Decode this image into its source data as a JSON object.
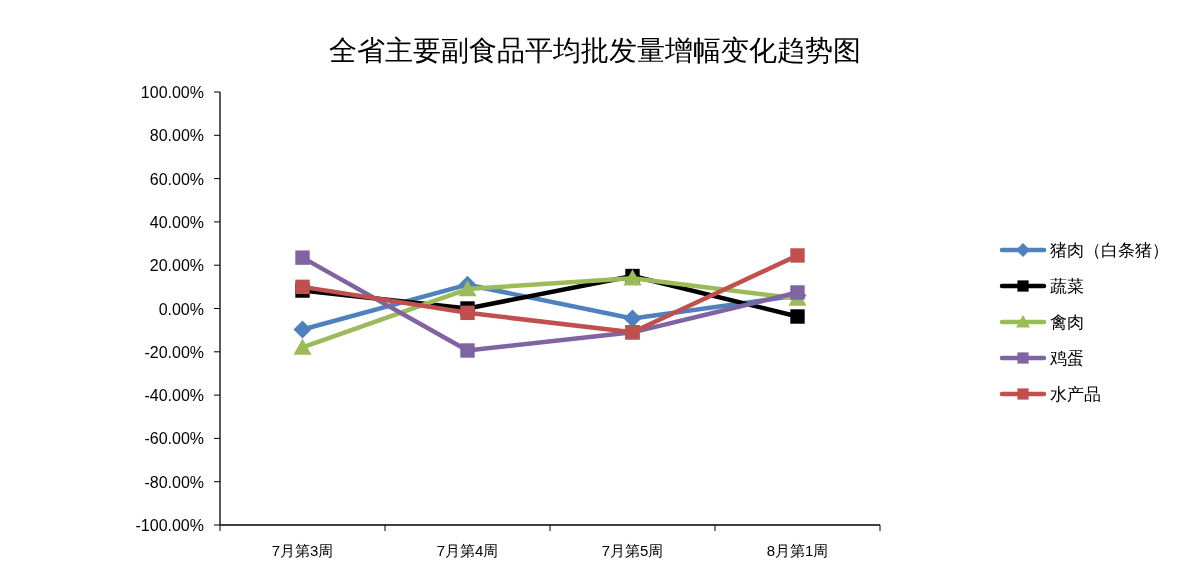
{
  "chart_data": {
    "type": "line",
    "title": "全省主要副食品平均批发量增幅变化趋势图",
    "categories": [
      "7月第3周",
      "7月第4周",
      "7月第5周",
      "8月第1周"
    ],
    "series": [
      {
        "name": "猪肉（白条猪）",
        "color": "#4f81bd",
        "marker": "diamond",
        "values": [
          -9.7,
          11,
          -4.6,
          6
        ]
      },
      {
        "name": "蔬菜",
        "color": "#000000",
        "marker": "square",
        "values": [
          8.3,
          0,
          15,
          -3.7
        ]
      },
      {
        "name": "禽肉",
        "color": "#9bbb59",
        "marker": "triangle",
        "values": [
          -18,
          9,
          14,
          4.6
        ]
      },
      {
        "name": "鸡蛋",
        "color": "#8064a2",
        "marker": "square",
        "values": [
          23.5,
          -19.4,
          -11,
          7.4
        ]
      },
      {
        "name": "水产品",
        "color": "#c0504d",
        "marker": "square",
        "values": [
          10,
          -2,
          -11,
          24.5
        ]
      }
    ],
    "ylim": [
      -100,
      100
    ],
    "yticks": [
      {
        "value": -100,
        "label": "-100.00%"
      },
      {
        "value": -80,
        "label": "-80.00%"
      },
      {
        "value": -60,
        "label": "-60.00%"
      },
      {
        "value": -40,
        "label": "-40.00%"
      },
      {
        "value": -20,
        "label": "-20.00%"
      },
      {
        "value": 0,
        "label": "0.00%"
      },
      {
        "value": 20,
        "label": "20.00%"
      },
      {
        "value": 40,
        "label": "40.00%"
      },
      {
        "value": 60,
        "label": "60.00%"
      },
      {
        "value": 80,
        "label": "80.00%"
      },
      {
        "value": 100,
        "label": "100.00%"
      }
    ],
    "legend": "right"
  }
}
